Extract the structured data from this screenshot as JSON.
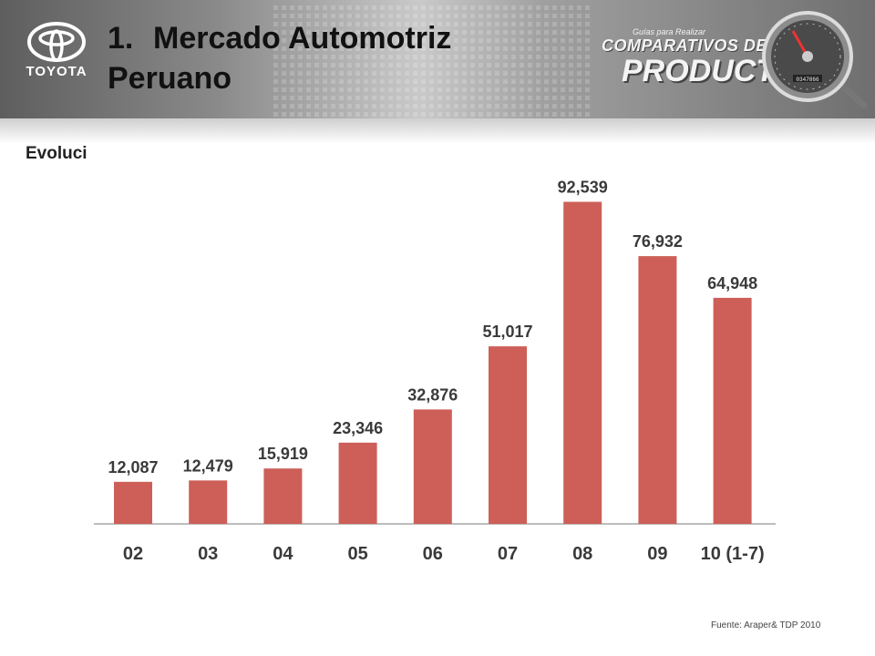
{
  "header": {
    "logo_text": "TOYOTA",
    "title_number": "1.",
    "title_line1": "Mercado Automotriz",
    "title_line2": "Peruano",
    "brand_small": "Guías para Realizar",
    "brand_line1": "COMPARATIVOS DE",
    "brand_line2": "PRODUCTO",
    "gauge_odometer": "0347866"
  },
  "subtitle": "Evoluci",
  "footer": {
    "source": "Fuente: Araper& TDP 2010"
  },
  "colors": {
    "bar": "#cd5f58",
    "header_dark": "#5e5e5e",
    "header_light": "#c9c9c9"
  },
  "chart_data": {
    "type": "bar",
    "categories": [
      "02",
      "03",
      "04",
      "05",
      "06",
      "07",
      "08",
      "09",
      "10 (1-7)"
    ],
    "values": [
      12087,
      12479,
      15919,
      23346,
      32876,
      51017,
      92539,
      76932,
      64948
    ],
    "data_labels": [
      "12,087",
      "12,479",
      "15,919",
      "23,346",
      "32,876",
      "51,017",
      "92,539",
      "76,932",
      "64,948"
    ],
    "title": "",
    "xlabel": "",
    "ylabel": "",
    "ylim": [
      0,
      110000
    ],
    "grid": false,
    "legend": "none"
  }
}
